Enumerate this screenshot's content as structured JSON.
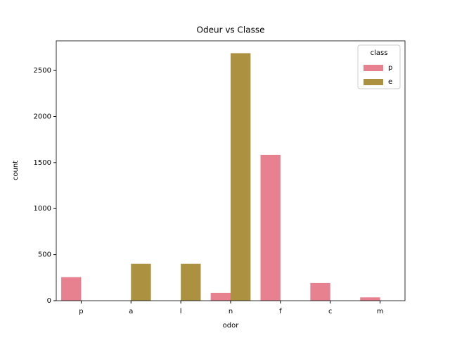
{
  "chart_data": {
    "type": "bar",
    "title": "Odeur vs Classe",
    "x_label": "odor",
    "y_label": "count",
    "categories": [
      "p",
      "a",
      "l",
      "n",
      "f",
      "c",
      "m"
    ],
    "series": [
      {
        "name": "p",
        "color": "#e7808f",
        "values": [
          256,
          0,
          0,
          85,
          1584,
          192,
          36
        ]
      },
      {
        "name": "e",
        "color": "#ab9140",
        "values": [
          0,
          400,
          400,
          2688,
          0,
          0,
          0
        ]
      }
    ],
    "legend_title": "class",
    "legend": "upper right",
    "ylim": [
      0,
      2822
    ],
    "yticks": [
      0,
      500,
      1000,
      1500,
      2000,
      2500
    ]
  }
}
